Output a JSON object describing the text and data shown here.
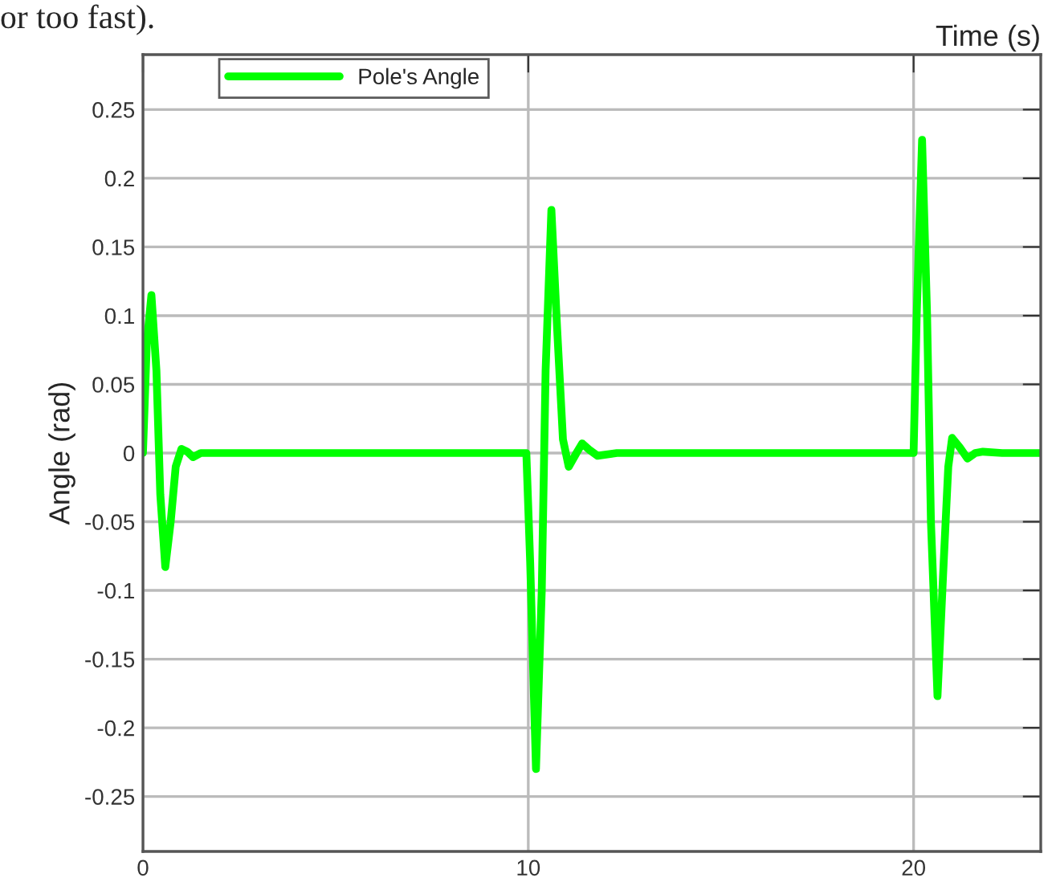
{
  "chart_data": {
    "type": "line",
    "xlabel": "Time (s)",
    "ylabel": "Angle (rad)",
    "annotations": [
      "or too fast)."
    ],
    "xlim": [
      0,
      23.3
    ],
    "ylim": [
      -0.29,
      0.29
    ],
    "xticks": [
      0,
      10,
      20
    ],
    "yticks": [
      -0.25,
      -0.2,
      -0.15,
      -0.1,
      -0.05,
      0,
      0.05,
      0.1,
      0.15,
      0.2,
      0.25
    ],
    "grid": true,
    "legend": "top left",
    "series": [
      {
        "name": "Pole's Angle",
        "color": "#00ff00",
        "x": [
          0,
          0.1,
          0.22,
          0.35,
          0.45,
          0.58,
          0.72,
          0.85,
          1.0,
          1.15,
          1.3,
          1.5,
          1.8,
          9.95,
          10.05,
          10.2,
          10.35,
          10.45,
          10.6,
          10.75,
          10.9,
          11.05,
          11.25,
          11.4,
          11.6,
          11.8,
          12.3,
          20.0,
          20.08,
          20.22,
          20.35,
          20.45,
          20.62,
          20.78,
          20.9,
          21.0,
          21.2,
          21.4,
          21.6,
          21.8,
          22.3,
          23.3
        ],
        "values": [
          0,
          0.08,
          0.115,
          0.06,
          -0.03,
          -0.083,
          -0.05,
          -0.01,
          0.003,
          0.001,
          -0.003,
          0.0,
          0,
          0,
          -0.08,
          -0.23,
          -0.1,
          0.06,
          0.177,
          0.09,
          0.01,
          -0.01,
          0.0,
          0.007,
          0.002,
          -0.002,
          0,
          0,
          0.1,
          0.228,
          0.1,
          -0.05,
          -0.177,
          -0.08,
          -0.01,
          0.011,
          0.004,
          -0.004,
          0.0,
          0.001,
          0,
          0
        ]
      }
    ]
  }
}
